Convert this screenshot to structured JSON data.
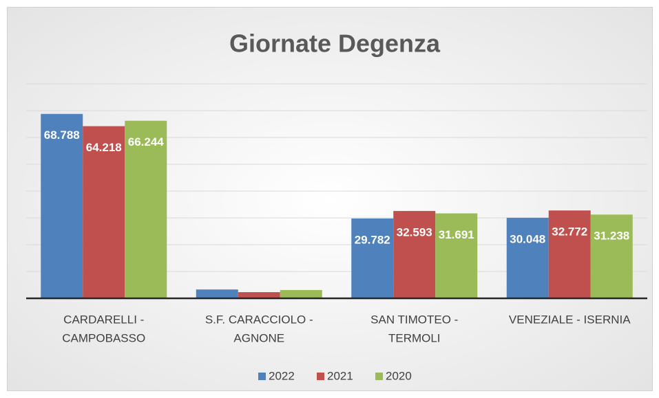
{
  "chart_data": {
    "type": "bar",
    "title": "Giornate Degenza",
    "categories": [
      [
        "CARDARELLI -",
        "CAMPOBASSO"
      ],
      [
        "S.F. CARACCIOLO -",
        "AGNONE"
      ],
      [
        "SAN TIMOTEO -",
        "TERMOLI"
      ],
      [
        "VENEZIALE - ISERNIA"
      ]
    ],
    "series": [
      {
        "name": "2022",
        "color": "#4f81bd",
        "values": [
          68788,
          3300,
          29782,
          30048
        ],
        "value_labels": [
          "68.788",
          null,
          "29.782",
          "30.048"
        ]
      },
      {
        "name": "2021",
        "color": "#c0504d",
        "values": [
          64218,
          2300,
          32593,
          32772
        ],
        "value_labels": [
          "64.218",
          null,
          "32.593",
          "32.772"
        ]
      },
      {
        "name": "2020",
        "color": "#9bbb59",
        "values": [
          66244,
          3100,
          31691,
          31238
        ],
        "value_labels": [
          "66.244",
          null,
          "31.691",
          "31.238"
        ]
      }
    ],
    "ylim": [
      0,
      80000
    ],
    "yticks": [
      0,
      10000,
      20000,
      30000,
      40000,
      50000,
      60000,
      70000,
      80000
    ],
    "grid": true,
    "legend": "bottom"
  }
}
